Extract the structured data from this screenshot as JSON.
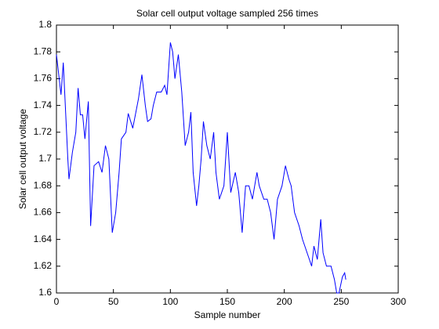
{
  "chart_data": {
    "type": "line",
    "title": "Solar cell output voltage sampled 256 times",
    "xlabel": "Sample number",
    "ylabel": "Solar cell output voltage",
    "xlim": [
      0,
      300
    ],
    "xticks": [
      0,
      50,
      100,
      150,
      200,
      250,
      300
    ],
    "ylim": [
      1.6,
      1.8
    ],
    "yticks": [
      1.6,
      1.62,
      1.64,
      1.66,
      1.68,
      1.7,
      1.72,
      1.74,
      1.76,
      1.78,
      1.8
    ],
    "grid": false,
    "series": [
      {
        "color": "#0000ff",
        "x": [
          0,
          4,
          6,
          10,
          11,
          14,
          17,
          19,
          21,
          23,
          25,
          28,
          30,
          33,
          37,
          40,
          43,
          46,
          49,
          52,
          55,
          57,
          61,
          63,
          67,
          72,
          75,
          78,
          80,
          83,
          85,
          88,
          92,
          95,
          97,
          100,
          102,
          104,
          107,
          110,
          113,
          116,
          118,
          120,
          123,
          125,
          127,
          129,
          132,
          135,
          138,
          140,
          143,
          147,
          150,
          153,
          157,
          160,
          163,
          166,
          169,
          172,
          176,
          178,
          182,
          185,
          188,
          191,
          194,
          198,
          201,
          204,
          206,
          209,
          213,
          216,
          218,
          222,
          224,
          226,
          229,
          232,
          234,
          237,
          241,
          244,
          246,
          248,
          251,
          253,
          254
        ],
        "values": [
          1.778,
          1.748,
          1.772,
          1.7,
          1.685,
          1.705,
          1.72,
          1.753,
          1.733,
          1.733,
          1.715,
          1.743,
          1.65,
          1.695,
          1.698,
          1.69,
          1.71,
          1.7,
          1.645,
          1.66,
          1.69,
          1.715,
          1.72,
          1.734,
          1.723,
          1.745,
          1.763,
          1.74,
          1.728,
          1.73,
          1.74,
          1.75,
          1.75,
          1.755,
          1.748,
          1.787,
          1.78,
          1.76,
          1.778,
          1.75,
          1.71,
          1.72,
          1.735,
          1.69,
          1.665,
          1.68,
          1.7,
          1.728,
          1.71,
          1.7,
          1.72,
          1.69,
          1.67,
          1.68,
          1.72,
          1.675,
          1.69,
          1.675,
          1.645,
          1.68,
          1.68,
          1.67,
          1.69,
          1.68,
          1.67,
          1.67,
          1.66,
          1.64,
          1.67,
          1.68,
          1.695,
          1.685,
          1.68,
          1.66,
          1.65,
          1.64,
          1.635,
          1.625,
          1.62,
          1.635,
          1.625,
          1.655,
          1.63,
          1.62,
          1.62,
          1.61,
          1.6,
          1.6,
          1.612,
          1.615,
          1.61
        ]
      }
    ]
  }
}
